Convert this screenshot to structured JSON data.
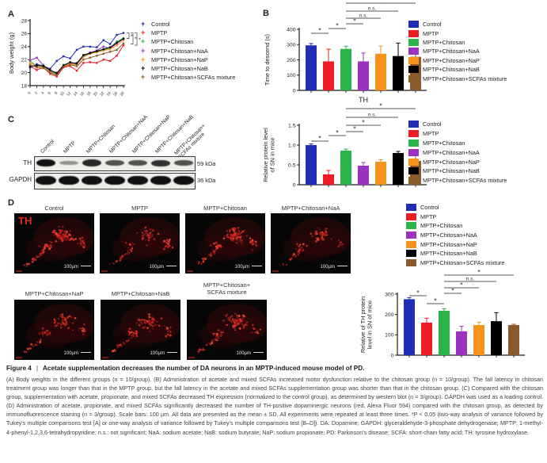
{
  "panel_labels": {
    "a": "A",
    "b": "B",
    "c": "C",
    "d": "D"
  },
  "groups": [
    {
      "label": "Control",
      "color": "#1f2db4"
    },
    {
      "label": "MPTP",
      "color": "#ee1c25"
    },
    {
      "label": "MPTP+Chitosan",
      "color": "#2cb34a"
    },
    {
      "label": "MPTP+Chitosan+NaA",
      "color": "#9c33c0"
    },
    {
      "label": "MPTP+Chitosan+NaP",
      "color": "#f6921e"
    },
    {
      "label": "MPTP+Chitosan+NaB",
      "color": "#000000"
    },
    {
      "label": "MPTP+Chitosan+SCFAs mixture",
      "color": "#8a5a2b"
    }
  ],
  "chart_data": [
    {
      "id": "body-weight",
      "type": "line",
      "title": "",
      "xlabel": "",
      "ylabel": "Body weight (g)",
      "ylim": [
        18,
        28
      ],
      "yticks": [
        "18",
        "20",
        "22",
        "24",
        "26",
        "28"
      ],
      "x": [
        0,
        2,
        4,
        6,
        8,
        10,
        12,
        14,
        16,
        18,
        20,
        22,
        24,
        26,
        28
      ],
      "series": [
        {
          "name": "Control",
          "color": "#1f2db4",
          "values": [
            20.8,
            21.3,
            21.0,
            20.6,
            21.8,
            22.5,
            22.2,
            23.5,
            24.0,
            24.0,
            23.9,
            25.0,
            24.4,
            25.8,
            26.1
          ]
        },
        {
          "name": "MPTP",
          "color": "#ee1c25",
          "values": [
            21.0,
            20.4,
            20.8,
            19.8,
            19.4,
            20.8,
            21.0,
            20.3,
            21.5,
            21.6,
            21.5,
            22.0,
            21.8,
            22.6,
            24.2
          ]
        },
        {
          "name": "MPTP+Chitosan",
          "color": "#2cb34a",
          "values": [
            21.8,
            21.0,
            21.2,
            20.2,
            19.8,
            21.2,
            21.5,
            21.3,
            22.5,
            23.0,
            23.2,
            23.5,
            23.8,
            24.8,
            25.3
          ]
        },
        {
          "name": "MPTP+Chitosan+NaA",
          "color": "#9c33c0",
          "values": [
            21.9,
            22.3,
            21.1,
            20.3,
            20.0,
            21.0,
            21.4,
            21.5,
            22.6,
            23.1,
            23.4,
            24.0,
            23.7,
            24.5,
            25.2
          ]
        },
        {
          "name": "MPTP+Chitosan+NaP",
          "color": "#f6921e",
          "values": [
            21.5,
            21.0,
            20.9,
            20.1,
            19.7,
            21.0,
            21.3,
            21.2,
            22.4,
            22.9,
            23.1,
            23.4,
            23.6,
            24.2,
            25.0
          ]
        },
        {
          "name": "MPTP+Chitosan+NaB",
          "color": "#000000",
          "values": [
            20.9,
            21.1,
            21.0,
            20.4,
            19.9,
            21.1,
            21.6,
            21.4,
            22.7,
            23.0,
            23.3,
            23.6,
            23.9,
            24.6,
            25.2
          ]
        },
        {
          "name": "MPTP+Chitosan+SCFAs mixture",
          "color": "#8a5a2b",
          "values": [
            21.2,
            20.8,
            20.7,
            20.0,
            19.6,
            20.9,
            21.2,
            21.0,
            22.0,
            22.3,
            22.6,
            22.9,
            23.2,
            23.5,
            24.5
          ]
        }
      ],
      "annotation": "nested bracket comparisons marked *"
    },
    {
      "id": "time-to-descend",
      "type": "bar",
      "title": "",
      "ylabel": "Time to descend (s)",
      "ylim": [
        0,
        400
      ],
      "yticks": [
        "0",
        "100",
        "200",
        "300",
        "400"
      ],
      "categories": [
        "Control",
        "MPTP",
        "MPTP+Chitosan",
        "MPTP+Chitosan+NaA",
        "MPTP+Chitosan+NaP",
        "MPTP+Chitosan+NaB",
        "MPTP+Chitosan+SCFAs mixture"
      ],
      "values": [
        295,
        190,
        272,
        190,
        240,
        225,
        220
      ],
      "errors": [
        12,
        80,
        18,
        55,
        50,
        85,
        45
      ],
      "significance": [
        {
          "from": 0,
          "to": 1,
          "label": "*"
        },
        {
          "from": 1,
          "to": 2,
          "label": "*"
        },
        {
          "from": 2,
          "to": 3,
          "label": "*"
        },
        {
          "from": 2,
          "to": 4,
          "label": "n.s."
        },
        {
          "from": 2,
          "to": 5,
          "label": "n.s."
        },
        {
          "from": 2,
          "to": 6,
          "label": "*"
        }
      ]
    },
    {
      "id": "th-western-quant",
      "type": "bar",
      "title": "TH",
      "ylabel": "Relative protein level\nof SN in mice",
      "ylim": [
        0,
        1.5
      ],
      "yticks": [
        "0",
        "0.5",
        "1.0",
        "1.5"
      ],
      "categories": [
        "Control",
        "MPTP",
        "MPTP+Chitosan",
        "MPTP+Chitosan+NaA",
        "MPTP+Chitosan+NaP",
        "MPTP+Chitosan+NaB",
        "MPTP+Chitosan+SCFAs mixture"
      ],
      "values": [
        1.0,
        0.26,
        0.86,
        0.48,
        0.58,
        0.8,
        0.6
      ],
      "errors": [
        0.03,
        0.1,
        0.04,
        0.08,
        0.05,
        0.04,
        0.14
      ],
      "significance": [
        {
          "from": 0,
          "to": 1,
          "label": "*"
        },
        {
          "from": 1,
          "to": 2,
          "label": "*"
        },
        {
          "from": 2,
          "to": 3,
          "label": "*"
        },
        {
          "from": 2,
          "to": 4,
          "label": "*"
        },
        {
          "from": 2,
          "to": 5,
          "label": "n.s."
        },
        {
          "from": 2,
          "to": 6,
          "label": "*"
        }
      ]
    },
    {
      "id": "th-if-quant",
      "type": "bar",
      "title": "",
      "ylabel": "Relative of TH protein\nlevel in SN of mice",
      "ylim": [
        0,
        300
      ],
      "yticks": [
        "0",
        "100",
        "200",
        "300"
      ],
      "categories": [
        "Control",
        "MPTP",
        "MPTP+Chitosan",
        "MPTP+Chitosan+NaA",
        "MPTP+Chitosan+NaP",
        "MPTP+Chitosan+NaB",
        "MPTP+Chitosan+SCFAs mixture"
      ],
      "values": [
        275,
        160,
        218,
        117,
        148,
        167,
        148
      ],
      "errors": [
        8,
        22,
        10,
        25,
        14,
        42,
        4
      ],
      "significance": [
        {
          "from": 0,
          "to": 1,
          "label": "*"
        },
        {
          "from": 1,
          "to": 2,
          "label": "*"
        },
        {
          "from": 2,
          "to": 3,
          "label": "*"
        },
        {
          "from": 2,
          "to": 4,
          "label": "*"
        },
        {
          "from": 2,
          "to": 5,
          "label": "n.s."
        },
        {
          "from": 2,
          "to": 6,
          "label": "*"
        }
      ]
    }
  ],
  "western_blot": {
    "lane_labels": [
      "Control",
      "MPTP",
      "MPTP+Chitosan",
      "MPTP+Chitosan+NaA",
      "MPTP+Chitosan+NaP",
      "MPTP+Chitosan+NaB",
      "MPTP+Chitosan+\nSCFAs mixture"
    ],
    "rows": [
      {
        "protein": "TH",
        "size_label": "59 kDa",
        "band_intensities": [
          1.0,
          0.2,
          0.85,
          0.6,
          0.6,
          0.8,
          0.6
        ]
      },
      {
        "protein": "GAPDH",
        "size_label": "36 kDa",
        "band_intensities": [
          1,
          1,
          1,
          1,
          1,
          1,
          1
        ]
      }
    ]
  },
  "micrographs": {
    "stain_label": "TH",
    "stain_color": "#e8281e",
    "scale_label": "100μm",
    "titles": [
      "Control",
      "MPTP",
      "MPTP+Chitosan",
      "MPTP+Chitosan+NaA",
      "MPTP+Chitosan+NaP",
      "MPTP+Chitosan+NaB",
      "MPTP+Chitosan+\nSCFAs mixture"
    ],
    "densities": [
      1.0,
      0.55,
      0.95,
      0.5,
      0.55,
      0.75,
      0.8
    ]
  },
  "caption": {
    "figure_label": "Figure 4",
    "separator": "|",
    "title": "Acetate supplementation decreases the number of DA neurons in an MPTP-induced mouse model of PD.",
    "body": "(A) Body weights in the different groups (n = 10/group). (B) Administration of acetate and mixed SCFAs increased motor dysfunction relative to the chitosan group (n = 10/group). The fall latency in chitosan treatment group was longer than that in the MPTP group, but the fall latency in the acetate and mixed SCFAs supplementation group was shorter than that in the chitosan group. (C) Compared with the chitosan group, supplementation with acetate, propionate, and mixed SCFAs decreased TH expression (normalized to the control group), as determined by western blot (n = 3/group). GAPDH was used as a loading control. (D) Administration of acetate, propionate, and mixed SCFAs significantly decreased the number of TH-positive dopaminergic neurons (red, Alexa Fluor 594) compared with the chitosan group, as detected by immunofluorescence staining (n = 3/group). Scale bars: 100 μm. All data are presented as the mean ± SD. All experiments were repeated at least three times. *P < 0.05 (two-way analysis of variance followed by Tukey's multiple comparisons test [A] or one-way analysis of variance followed by Tukey's multiple comparisons test [B–D]). DA: Dopamine; GAPDH: glyceraldehyde-3-phosphate dehydrogenase; MPTP: 1-methyl-4-phenyl-1,2,3,6-tetrahydropyridine; n.s.: not significant; NaA: sodium acetate; NaB: sodium butyrate; NaP: sodium propionate; PD: Parkinson's disease; SCFA: short-chain fatty acid; TH: tyrosine hydroxylase."
  }
}
